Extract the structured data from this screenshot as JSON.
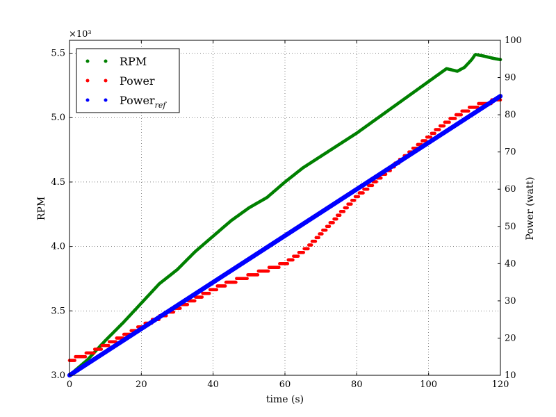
{
  "chart_data": {
    "type": "scatter",
    "xlabel": "time (s)",
    "ylabel": "RPM",
    "y2label": "Power (watt)",
    "y_multiplier_label": "×10³",
    "xlim": [
      0,
      120
    ],
    "ylim": [
      3.0,
      5.6
    ],
    "y2lim": [
      10,
      100
    ],
    "x_ticks": [
      "0",
      "20",
      "40",
      "60",
      "80",
      "100",
      "120"
    ],
    "y_ticks": [
      "3.0",
      "3.5",
      "4.0",
      "4.5",
      "5.0",
      "5.5"
    ],
    "y2_ticks": [
      "10",
      "20",
      "30",
      "40",
      "50",
      "60",
      "70",
      "80",
      "90",
      "100"
    ],
    "grid": true,
    "legend_position": "top-left",
    "legend_extra": "ref",
    "series": [
      {
        "name": "RPM",
        "axis": "left",
        "color": "#008000",
        "x": [
          0,
          5,
          10,
          15,
          20,
          25,
          30,
          35,
          40,
          45,
          50,
          55,
          60,
          65,
          70,
          75,
          80,
          85,
          90,
          95,
          100,
          105,
          108,
          110,
          112,
          113,
          115,
          118,
          120
        ],
        "values": [
          3.0,
          3.12,
          3.27,
          3.41,
          3.56,
          3.71,
          3.82,
          3.96,
          4.08,
          4.2,
          4.3,
          4.38,
          4.5,
          4.61,
          4.7,
          4.79,
          4.88,
          4.98,
          5.08,
          5.18,
          5.28,
          5.38,
          5.36,
          5.39,
          5.45,
          5.49,
          5.48,
          5.46,
          5.45
        ]
      },
      {
        "name": "Power",
        "axis": "right",
        "color": "#ff0000",
        "x": [
          0,
          6,
          12,
          18,
          24,
          30,
          36,
          42,
          48,
          54,
          60,
          66,
          70,
          75,
          80,
          85,
          90,
          95,
          100,
          105,
          110,
          115,
          120
        ],
        "values": [
          14,
          16,
          19,
          22,
          25,
          28,
          31,
          34,
          36,
          38,
          40,
          44,
          48,
          53,
          58,
          62,
          66,
          70,
          74,
          78,
          81,
          83,
          84
        ]
      },
      {
        "name": "Power",
        "axis": "right",
        "color": "#0000ff",
        "x": [
          0,
          120
        ],
        "values": [
          10,
          85
        ]
      }
    ]
  }
}
